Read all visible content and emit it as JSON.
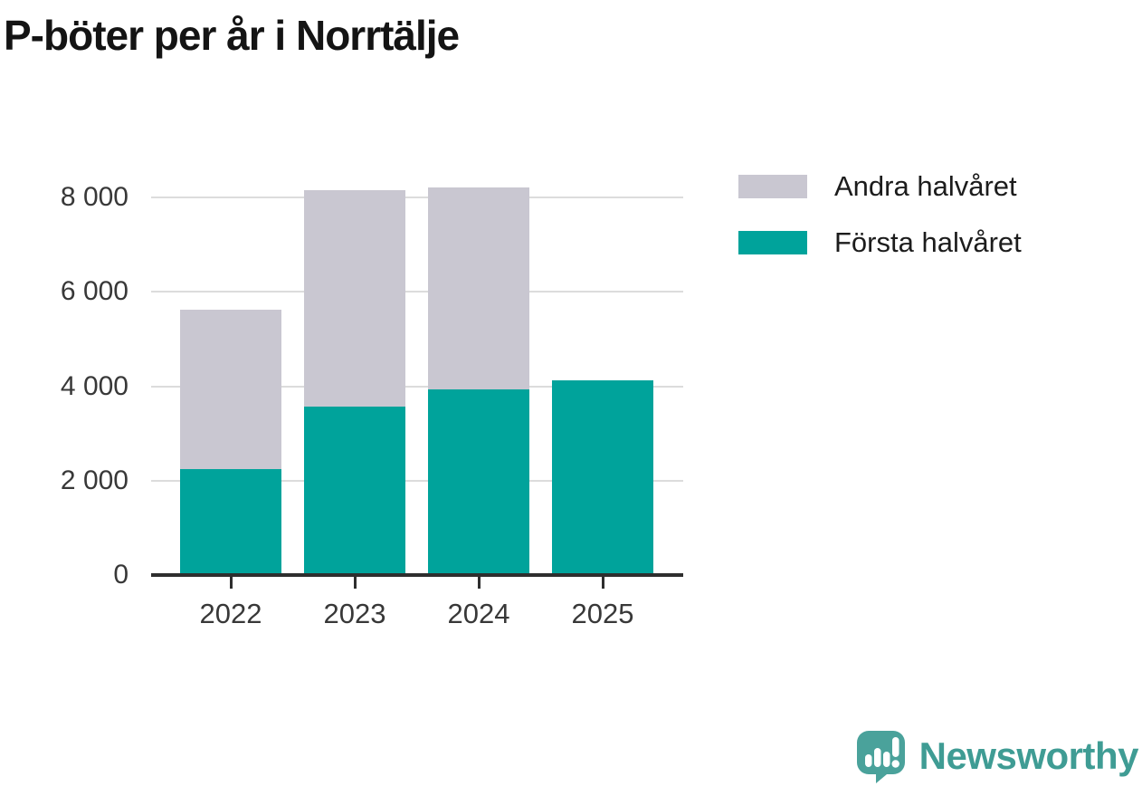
{
  "title": "P-böter per år i Norrtälje",
  "colors": {
    "first_half": "#00a39b",
    "second_half": "#c9c7d1",
    "grid": "#dcdcdc",
    "axis": "#2e2e2e",
    "tick_label": "#383838",
    "title_text": "#141414",
    "brand": "#3f9c94",
    "logo_bubble": "#4aa29b"
  },
  "legend": [
    {
      "label": "Andra halvåret",
      "color_key": "second_half"
    },
    {
      "label": "Första halvåret",
      "color_key": "first_half"
    }
  ],
  "chart_data": {
    "type": "bar",
    "stacked": true,
    "title": "P-böter per år i Norrtälje",
    "xlabel": "",
    "ylabel": "",
    "categories": [
      "2022",
      "2023",
      "2024",
      "2025"
    ],
    "series": [
      {
        "name": "Första halvåret",
        "color_key": "first_half",
        "values": [
          2200,
          3540,
          3890,
          4080
        ]
      },
      {
        "name": "Andra halvåret",
        "color_key": "second_half",
        "values": [
          3380,
          4570,
          4280,
          0
        ]
      }
    ],
    "totals": [
      5580,
      8110,
      8170,
      4080
    ],
    "ylim": [
      0,
      8400
    ],
    "yticks": [
      {
        "value": 0,
        "label": "0"
      },
      {
        "value": 2000,
        "label": "2 000"
      },
      {
        "value": 4000,
        "label": "4 000"
      },
      {
        "value": 6000,
        "label": "6 000"
      },
      {
        "value": 8000,
        "label": "8 000"
      }
    ],
    "grid": "horizontal",
    "legend_position": "top-right"
  },
  "footer": {
    "brand": "Newsworthy"
  }
}
